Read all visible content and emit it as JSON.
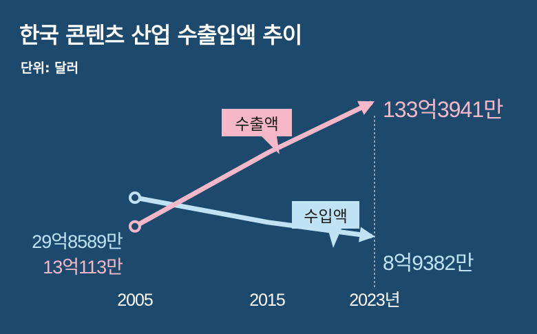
{
  "title": "한국 콘텐츠 산업 수출입액 추이",
  "unit_label": "단위: 달러",
  "colors": {
    "background": "#1d4a6c",
    "export": "#f6b8c9",
    "import": "#bfe3f5",
    "text": "#ffffff"
  },
  "chart_data": {
    "type": "line",
    "x": [
      2005,
      2015,
      2023
    ],
    "x_tick_labels": [
      "2005",
      "2015",
      "2023년"
    ],
    "series": [
      {
        "name": "수출액",
        "values": [
          1301130000,
          7000000000,
          13339410000
        ],
        "start_label": "13억113만",
        "end_label": "133억3941만"
      },
      {
        "name": "수입액",
        "values": [
          2985890000,
          1500000000,
          893820000
        ],
        "start_label": "29억8589만",
        "end_label": "8억9382만"
      }
    ],
    "legend": "callouts",
    "grid": false
  }
}
